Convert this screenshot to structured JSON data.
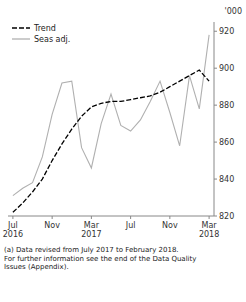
{
  "chart_data": {
    "type": "line",
    "categories": [
      "Jul\n2016",
      null,
      null,
      null,
      "Nov",
      null,
      null,
      null,
      "Mar\n2017",
      null,
      null,
      null,
      "Jul",
      null,
      null,
      null,
      "Nov",
      null,
      null,
      null,
      "Mar\n2018"
    ],
    "series": [
      {
        "name": "Trend",
        "color": "#000000",
        "line_style": "dashed",
        "values": [
          822,
          827,
          833,
          840,
          850,
          859,
          867,
          874,
          879,
          881,
          882,
          882,
          883,
          884,
          885,
          887,
          890,
          893,
          896,
          899,
          893
        ]
      },
      {
        "name": "Seas adj.",
        "color": "#b0b0b0",
        "line_style": "solid",
        "values": [
          831,
          835,
          838,
          852,
          875,
          892,
          893,
          857,
          846,
          870,
          886,
          869,
          866,
          872,
          882,
          893,
          876,
          858,
          896,
          878,
          918
        ]
      }
    ],
    "y_label": "'000",
    "ylim": [
      820,
      925
    ],
    "yticks": [
      820,
      840,
      860,
      880,
      900,
      920
    ],
    "grid": false,
    "legend": "upper left",
    "annotations": [
      "(a) Data revised from July 2017 to February 2018.\nFor further information see the end of the Data Quality\nIssues (Appendix)."
    ]
  }
}
